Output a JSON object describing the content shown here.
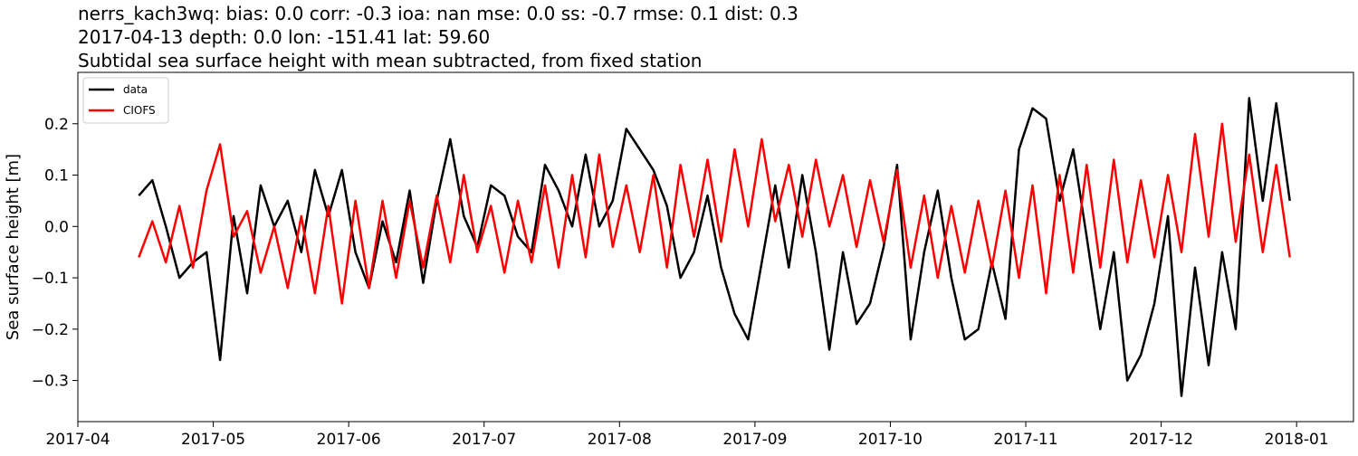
{
  "chart_data": {
    "type": "line",
    "title_lines": [
      "nerrs_kach3wq: bias: 0.0  corr: -0.3  ioa: nan  mse: 0.0  ss: -0.7  rmse: 0.1  dist: 0.3",
      "2017-04-13 depth: 0.0 lon: -151.41 lat: 59.60",
      "Subtidal sea surface height with mean subtracted, from fixed station"
    ],
    "ylabel": "Sea surface height [m]",
    "x": [
      4.45,
      4.55,
      4.65,
      4.75,
      4.85,
      4.95,
      5.05,
      5.15,
      5.25,
      5.35,
      5.45,
      5.55,
      5.65,
      5.75,
      5.85,
      5.95,
      6.05,
      6.15,
      6.25,
      6.35,
      6.45,
      6.55,
      6.65,
      6.75,
      6.85,
      6.95,
      7.05,
      7.15,
      7.25,
      7.35,
      7.45,
      7.55,
      7.65,
      7.75,
      7.85,
      7.95,
      8.05,
      8.15,
      8.25,
      8.35,
      8.45,
      8.55,
      8.65,
      8.75,
      8.85,
      8.95,
      9.05,
      9.15,
      9.25,
      9.35,
      9.45,
      9.55,
      9.65,
      9.75,
      9.85,
      9.95,
      10.05,
      10.15,
      10.25,
      10.35,
      10.45,
      10.55,
      10.65,
      10.75,
      10.85,
      10.95,
      11.05,
      11.15,
      11.25,
      11.35,
      11.45,
      11.55,
      11.65,
      11.75,
      11.85,
      11.95,
      12.05,
      12.15,
      12.25,
      12.35,
      12.45,
      12.55,
      12.65,
      12.75,
      12.85,
      12.95
    ],
    "series": [
      {
        "name": "data",
        "color": "#000000",
        "values": [
          0.06,
          0.09,
          0.0,
          -0.1,
          -0.07,
          -0.05,
          -0.26,
          0.02,
          -0.13,
          0.08,
          0.0,
          0.05,
          -0.05,
          0.11,
          0.02,
          0.11,
          -0.05,
          -0.12,
          0.01,
          -0.07,
          0.07,
          -0.11,
          0.05,
          0.17,
          0.02,
          -0.04,
          0.08,
          0.06,
          -0.02,
          -0.05,
          0.12,
          0.07,
          0.0,
          0.14,
          0.0,
          0.05,
          0.19,
          0.15,
          0.11,
          0.04,
          -0.1,
          -0.05,
          0.06,
          -0.08,
          -0.17,
          -0.22,
          -0.07,
          0.08,
          -0.08,
          0.1,
          -0.05,
          -0.24,
          -0.05,
          -0.19,
          -0.15,
          -0.04,
          0.12,
          -0.22,
          -0.05,
          0.07,
          -0.1,
          -0.22,
          -0.2,
          -0.07,
          -0.18,
          0.15,
          0.23,
          0.21,
          0.05,
          0.15,
          -0.02,
          -0.2,
          -0.05,
          -0.3,
          -0.25,
          -0.15,
          0.02,
          -0.33,
          -0.08,
          -0.27,
          -0.05,
          -0.2,
          0.25,
          0.05,
          0.24,
          0.05
        ]
      },
      {
        "name": "CIOFS",
        "color": "#ff0000",
        "values": [
          -0.06,
          0.01,
          -0.07,
          0.04,
          -0.08,
          0.07,
          0.16,
          -0.02,
          0.03,
          -0.09,
          0.0,
          -0.12,
          0.02,
          -0.13,
          0.04,
          -0.15,
          0.05,
          -0.12,
          0.05,
          -0.1,
          0.05,
          -0.08,
          0.06,
          -0.07,
          0.1,
          -0.05,
          0.04,
          -0.09,
          0.05,
          -0.07,
          0.08,
          -0.08,
          0.1,
          -0.06,
          0.14,
          -0.04,
          0.08,
          -0.05,
          0.1,
          -0.08,
          0.12,
          -0.02,
          0.13,
          -0.03,
          0.15,
          0.0,
          0.17,
          0.01,
          0.12,
          -0.02,
          0.13,
          0.0,
          0.1,
          -0.04,
          0.09,
          -0.03,
          0.11,
          -0.08,
          0.06,
          -0.1,
          0.04,
          -0.09,
          0.05,
          -0.08,
          0.07,
          -0.1,
          0.08,
          -0.13,
          0.1,
          -0.09,
          0.12,
          -0.08,
          0.13,
          -0.07,
          0.09,
          -0.06,
          0.1,
          -0.05,
          0.18,
          -0.02,
          0.2,
          -0.03,
          0.14,
          -0.05,
          0.12,
          -0.06
        ]
      }
    ],
    "xlim": [
      4.0,
      13.42
    ],
    "xticks": [
      {
        "value": 4,
        "label": "2017-04"
      },
      {
        "value": 5,
        "label": "2017-05"
      },
      {
        "value": 6,
        "label": "2017-06"
      },
      {
        "value": 7,
        "label": "2017-07"
      },
      {
        "value": 8,
        "label": "2017-08"
      },
      {
        "value": 9,
        "label": "2017-09"
      },
      {
        "value": 10,
        "label": "2017-10"
      },
      {
        "value": 11,
        "label": "2017-11"
      },
      {
        "value": 12,
        "label": "2017-12"
      },
      {
        "value": 13,
        "label": "2018-01"
      }
    ],
    "ylim": [
      -0.38,
      0.3
    ],
    "yticks": [
      {
        "value": -0.3,
        "label": "−0.3"
      },
      {
        "value": -0.2,
        "label": "−0.2"
      },
      {
        "value": -0.1,
        "label": "−0.1"
      },
      {
        "value": 0,
        "label": "0.0"
      },
      0.1,
      0.2
    ],
    "legend": "upper left",
    "grid": false
  }
}
